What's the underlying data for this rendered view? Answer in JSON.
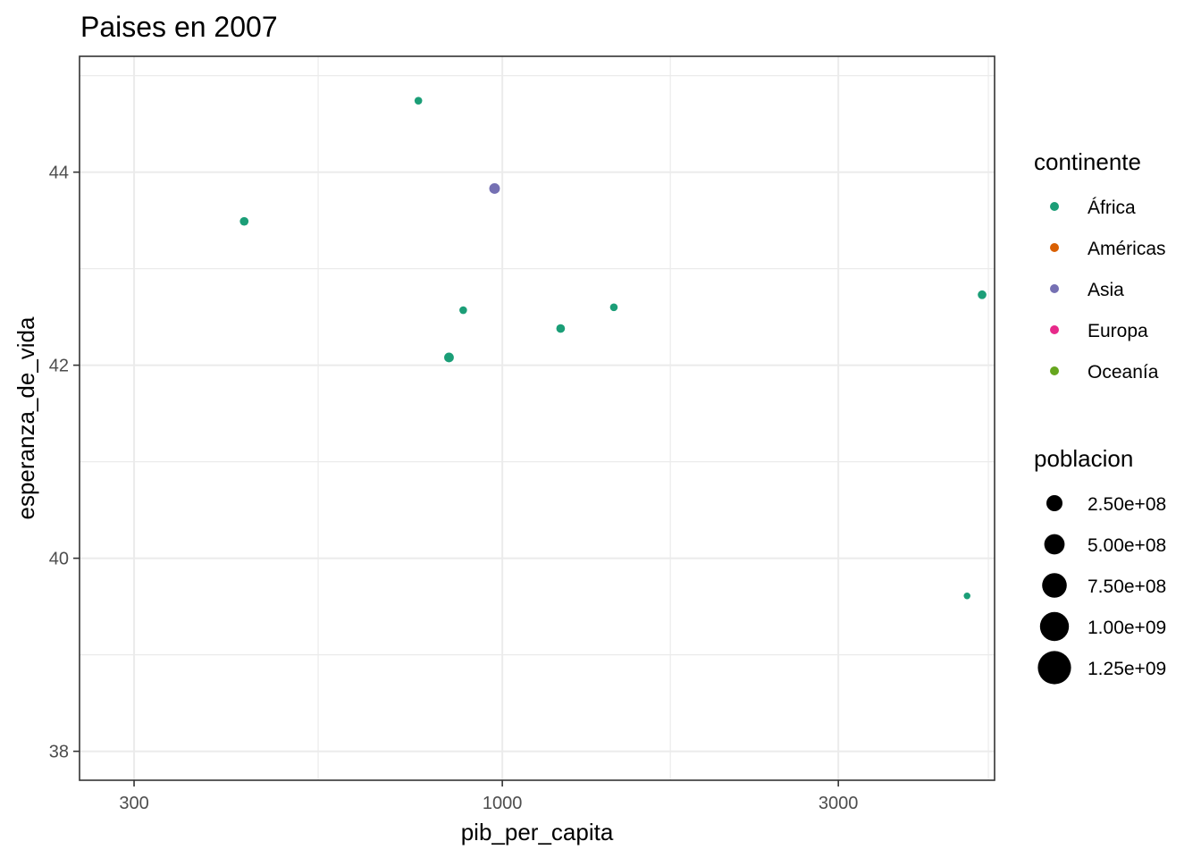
{
  "chart_data": {
    "type": "scatter",
    "title": "Paises en 2007",
    "xlabel": "pib_per_capita",
    "ylabel": "esperanza_de_vida",
    "x_scale": "log10",
    "xlim": [
      251,
      5000
    ],
    "ylim": [
      37.7,
      45.2
    ],
    "x_ticks": [
      300,
      1000,
      3000
    ],
    "x_tick_labels": [
      "300",
      "1000",
      "3000"
    ],
    "x_minor_ticks": [
      547.7,
      1732,
      4900
    ],
    "y_ticks": [
      38,
      40,
      42,
      44
    ],
    "y_tick_labels": [
      "38",
      "40",
      "42",
      "44"
    ],
    "y_minor_ticks": [
      39,
      41,
      43,
      45
    ],
    "grid": true,
    "legend_placement": "right",
    "points": [
      {
        "x": 760,
        "y": 44.74,
        "continent": "África",
        "size": 2
      },
      {
        "x": 975,
        "y": 43.83,
        "continent": "Asia",
        "size": 5
      },
      {
        "x": 430,
        "y": 43.49,
        "continent": "África",
        "size": 3
      },
      {
        "x": 880,
        "y": 42.57,
        "continent": "África",
        "size": 2
      },
      {
        "x": 1440,
        "y": 42.6,
        "continent": "África",
        "size": 2
      },
      {
        "x": 1210,
        "y": 42.38,
        "continent": "África",
        "size": 3
      },
      {
        "x": 840,
        "y": 42.08,
        "continent": "África",
        "size": 4
      },
      {
        "x": 4800,
        "y": 42.73,
        "continent": "África",
        "size": 3
      },
      {
        "x": 4570,
        "y": 39.61,
        "continent": "África",
        "size": 1
      }
    ],
    "legend_color": {
      "title": "continente",
      "items": [
        {
          "label": "África",
          "color": "#1b9e77"
        },
        {
          "label": "Américas",
          "color": "#d95f02"
        },
        {
          "label": "Asia",
          "color": "#7570b3"
        },
        {
          "label": "Europa",
          "color": "#e7298a"
        },
        {
          "label": "Oceanía",
          "color": "#66a61e"
        }
      ]
    },
    "legend_size": {
      "title": "poblacion",
      "items": [
        {
          "label": "2.50e+08",
          "value": 250000000
        },
        {
          "label": "5.00e+08",
          "value": 500000000
        },
        {
          "label": "7.50e+08",
          "value": 750000000
        },
        {
          "label": "1.00e+09",
          "value": 1000000000
        },
        {
          "label": "1.25e+09",
          "value": 1250000000
        }
      ]
    }
  }
}
